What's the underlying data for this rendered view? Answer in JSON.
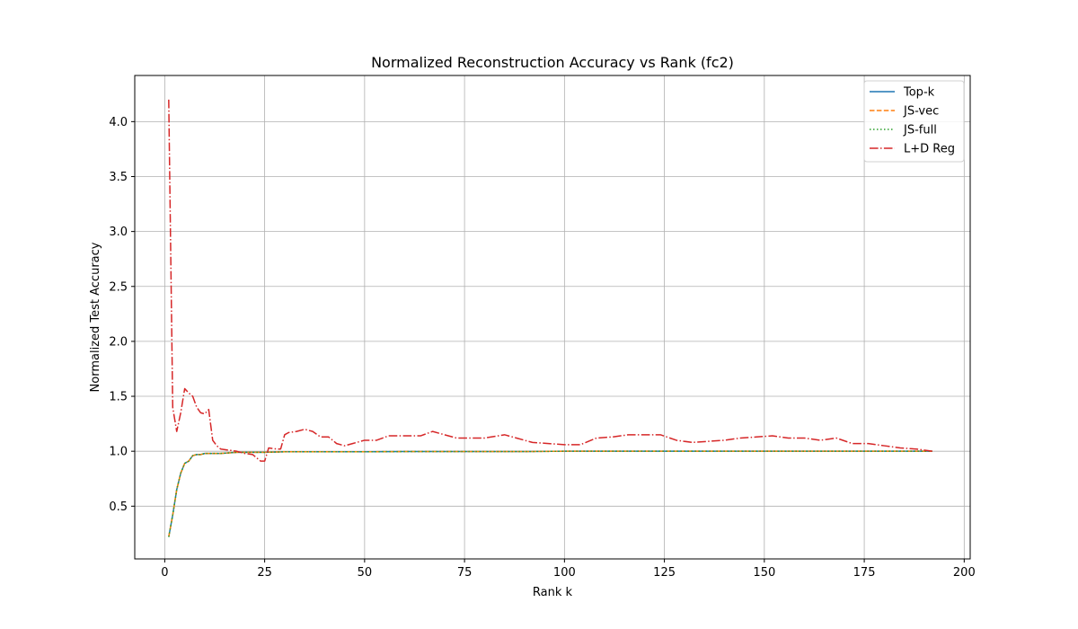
{
  "chart_data": {
    "type": "line",
    "title": "Normalized Reconstruction Accuracy vs Rank (fc2)",
    "xlabel": "Rank k",
    "ylabel": "Normalized Test Accuracy",
    "xlim": [
      -7.5,
      201.5
    ],
    "ylim": [
      0.02,
      4.42
    ],
    "xticks": [
      0,
      25,
      50,
      75,
      100,
      125,
      150,
      175,
      200
    ],
    "yticks": [
      0.5,
      1.0,
      1.5,
      2.0,
      2.5,
      3.0,
      3.5,
      4.0
    ],
    "grid": true,
    "legend_position": "top-right",
    "series": [
      {
        "name": "Top-k",
        "color": "#1f77b4",
        "style": "solid",
        "x": [
          1,
          2,
          3,
          4,
          5,
          6,
          7,
          8,
          9,
          10,
          12,
          14,
          16,
          18,
          20,
          25,
          30,
          40,
          50,
          60,
          70,
          80,
          90,
          100,
          110,
          120,
          130,
          140,
          150,
          160,
          170,
          180,
          190,
          192
        ],
        "y": [
          0.22,
          0.42,
          0.65,
          0.8,
          0.89,
          0.91,
          0.96,
          0.97,
          0.97,
          0.98,
          0.98,
          0.98,
          0.985,
          0.99,
          0.99,
          0.99,
          0.995,
          0.995,
          0.995,
          0.997,
          0.997,
          0.997,
          0.997,
          1.0,
          1.0,
          1.0,
          1.0,
          1.0,
          1.0,
          1.0,
          1.0,
          1.0,
          1.0,
          1.0
        ]
      },
      {
        "name": "JS-vec",
        "color": "#ff7f0e",
        "style": "dashed",
        "x": [
          1,
          2,
          3,
          4,
          5,
          6,
          7,
          8,
          9,
          10,
          12,
          14,
          16,
          18,
          20,
          25,
          30,
          40,
          50,
          60,
          70,
          80,
          90,
          100,
          110,
          120,
          130,
          140,
          150,
          160,
          170,
          180,
          190,
          192
        ],
        "y": [
          0.22,
          0.42,
          0.65,
          0.8,
          0.89,
          0.91,
          0.96,
          0.97,
          0.97,
          0.98,
          0.98,
          0.98,
          0.985,
          0.99,
          0.99,
          0.99,
          0.995,
          0.995,
          0.995,
          0.997,
          0.997,
          0.997,
          0.997,
          1.0,
          1.0,
          1.0,
          1.0,
          1.0,
          1.0,
          1.0,
          1.0,
          1.0,
          1.0,
          1.0
        ]
      },
      {
        "name": "JS-full",
        "color": "#2ca02c",
        "style": "dotted",
        "x": [
          1,
          2,
          3,
          4,
          5,
          6,
          7,
          8,
          9,
          10,
          12,
          14,
          16,
          18,
          20,
          25,
          30,
          40,
          50,
          60,
          70,
          80,
          90,
          100,
          110,
          120,
          130,
          140,
          150,
          160,
          170,
          180,
          190,
          192
        ],
        "y": [
          0.22,
          0.42,
          0.65,
          0.8,
          0.89,
          0.91,
          0.96,
          0.97,
          0.97,
          0.98,
          0.98,
          0.98,
          0.985,
          0.99,
          0.99,
          0.99,
          0.995,
          0.995,
          0.995,
          0.997,
          0.997,
          0.997,
          0.997,
          1.0,
          1.0,
          1.0,
          1.0,
          1.0,
          1.0,
          1.0,
          1.0,
          1.0,
          1.0,
          1.0
        ]
      },
      {
        "name": "L+D Reg",
        "color": "#d62728",
        "style": "dashdot",
        "x": [
          1,
          2,
          3,
          4,
          5,
          6,
          7,
          8,
          9,
          10,
          11,
          12,
          13,
          14,
          16,
          18,
          20,
          22,
          24,
          25,
          26,
          28,
          29,
          30,
          31,
          33,
          35,
          37,
          39,
          41,
          43,
          45,
          47,
          50,
          53,
          56,
          60,
          64,
          67,
          70,
          73,
          76,
          80,
          85,
          88,
          92,
          96,
          100,
          104,
          108,
          112,
          116,
          120,
          124,
          128,
          132,
          136,
          140,
          144,
          148,
          152,
          156,
          160,
          164,
          168,
          172,
          176,
          180,
          184,
          188,
          192
        ],
        "y": [
          4.2,
          1.4,
          1.18,
          1.35,
          1.57,
          1.53,
          1.5,
          1.4,
          1.35,
          1.34,
          1.38,
          1.1,
          1.05,
          1.02,
          1.01,
          1.0,
          0.98,
          0.97,
          0.91,
          0.91,
          1.03,
          1.02,
          1.02,
          1.15,
          1.17,
          1.18,
          1.2,
          1.18,
          1.13,
          1.13,
          1.07,
          1.05,
          1.07,
          1.1,
          1.1,
          1.14,
          1.14,
          1.14,
          1.18,
          1.15,
          1.12,
          1.12,
          1.12,
          1.15,
          1.12,
          1.08,
          1.07,
          1.06,
          1.06,
          1.12,
          1.13,
          1.15,
          1.15,
          1.15,
          1.1,
          1.08,
          1.09,
          1.1,
          1.12,
          1.13,
          1.14,
          1.12,
          1.12,
          1.1,
          1.12,
          1.07,
          1.07,
          1.05,
          1.03,
          1.02,
          1.0
        ]
      }
    ]
  }
}
